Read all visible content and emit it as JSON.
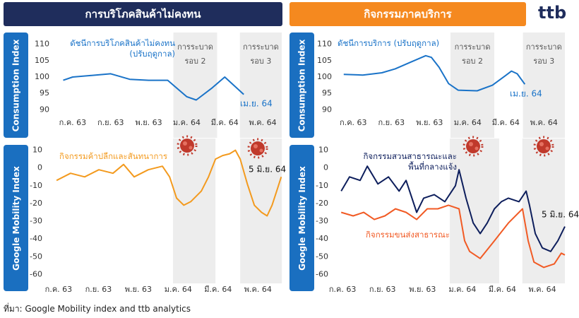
{
  "headers": {
    "left": "การบริโภคสินค้าไม่คงทน",
    "right": "กิจกรรมภาคบริการ"
  },
  "logo": "ttb",
  "side_labels": {
    "consumption": "Consumption Index",
    "mobility": "Google Mobility Index"
  },
  "source": "ที่มา: Google Mobility index and ttb analytics",
  "chart_data": [
    {
      "type": "line",
      "xlim": [
        -1,
        11
      ],
      "xticks": [
        {
          "value": 0,
          "label": "ก.ค. 63"
        },
        {
          "value": 2,
          "label": "ก.ย. 63"
        },
        {
          "value": 4,
          "label": "พ.ย. 63"
        },
        {
          "value": 6,
          "label": "ม.ค. 64"
        },
        {
          "value": 8,
          "label": "มี.ค. 64"
        },
        {
          "value": 10,
          "label": "พ.ค. 64"
        }
      ],
      "ylim": [
        87.5,
        112.5
      ],
      "yticks": [
        90,
        95,
        100,
        105,
        110
      ],
      "shaded": [
        {
          "from": 5.3,
          "to": 7.6,
          "label": "การระบาด รอบ 2"
        },
        {
          "from": 8.8,
          "to": 11,
          "label": "การระบาด รอบ 3"
        }
      ],
      "series": [
        {
          "name": "ดัชนีการบริโภคสินค้าไม่คงทน (ปรับฤดูกาล)",
          "color": "#1a73c8",
          "x": [
            -0.5,
            0,
            1,
            2,
            3,
            4,
            5,
            6,
            6.5,
            7.3,
            8,
            9
          ],
          "values": [
            99,
            100,
            100.5,
            101,
            99.3,
            99,
            99,
            94,
            93,
            96.5,
            100,
            94.7
          ]
        }
      ],
      "annotations": [
        {
          "text": "เม.ย. 64",
          "color": "#1a73c8"
        }
      ]
    },
    {
      "type": "line",
      "xlim": [
        -0.9,
        11.1
      ],
      "xticks": [
        {
          "value": 0,
          "label": "ก.ค. 63"
        },
        {
          "value": 2,
          "label": "ก.ย. 63"
        },
        {
          "value": 4,
          "label": "พ.ย. 63"
        },
        {
          "value": 6,
          "label": "ม.ค. 64"
        },
        {
          "value": 8,
          "label": "มี.ค. 64"
        },
        {
          "value": 10,
          "label": "พ.ค. 64"
        }
      ],
      "ylim": [
        87.5,
        112.5
      ],
      "yticks": [
        90,
        95,
        100,
        105,
        110
      ],
      "shaded": [
        {
          "from": 5.1,
          "to": 7.4,
          "label": "การระบาด รอบ 2"
        },
        {
          "from": 8.9,
          "to": 11.1,
          "label": "การระบาด รอบ 3"
        }
      ],
      "series": [
        {
          "name": "ดัชนีการบริการ (ปรับฤดูกาล)",
          "color": "#1a73c8",
          "x": [
            -0.5,
            0.5,
            1.5,
            2.2,
            3,
            3.8,
            4.1,
            4.5,
            5,
            5.5,
            6.5,
            7.3,
            8,
            8.3,
            8.6,
            9
          ],
          "values": [
            100.8,
            100.6,
            101.3,
            102.5,
            104.5,
            106.5,
            106,
            103,
            98,
            96,
            95.8,
            97.5,
            100.5,
            101.8,
            101,
            97.8
          ]
        }
      ],
      "annotations": [
        {
          "text": "เม.ย. 64",
          "color": "#1a73c8"
        }
      ]
    },
    {
      "type": "line",
      "xlim": [
        -0.6,
        11.3
      ],
      "xticks": [
        {
          "value": 0,
          "label": "ก.ค. 63"
        },
        {
          "value": 2,
          "label": "ก.ย. 63"
        },
        {
          "value": 4,
          "label": "พ.ย. 63"
        },
        {
          "value": 6,
          "label": "ม.ค. 64"
        },
        {
          "value": 8,
          "label": "มี.ค. 64"
        },
        {
          "value": 10,
          "label": "พ.ค. 64"
        }
      ],
      "ylim": [
        -65,
        15
      ],
      "yticks": [
        10,
        0,
        -10,
        -20,
        -30,
        -40,
        -50,
        -60
      ],
      "shaded": [
        {
          "from": 5.74,
          "to": 7.87
        },
        {
          "from": 9.11,
          "to": 11.2
        }
      ],
      "series": [
        {
          "name": "กิจกรรมค้าปลีกและสันทนาการ",
          "color": "#f39a1e",
          "x": [
            -0.1,
            0.6,
            1.31,
            2.02,
            2.73,
            3.26,
            3.79,
            4.5,
            5.21,
            5.57,
            5.92,
            6.28,
            6.63,
            7.16,
            7.52,
            7.87,
            8.23,
            8.58,
            8.87,
            9.11,
            9.47,
            9.82,
            10.18,
            10.46,
            10.71,
            11,
            11.17
          ],
          "values": [
            -7,
            -3,
            -5,
            -1,
            -3,
            2,
            -5,
            -1,
            1,
            -5,
            -17,
            -21,
            -19,
            -13,
            -5,
            5,
            7,
            8,
            10,
            5,
            -9,
            -21,
            -25,
            -27,
            -21,
            -11,
            -5
          ]
        }
      ],
      "annotations": [
        {
          "text": "5 มิ.ย. 64",
          "color": "#111111"
        }
      ]
    },
    {
      "type": "line",
      "xlim": [
        -0.5,
        11.2
      ],
      "xticks": [
        {
          "value": 0,
          "label": "ก.ค. 63"
        },
        {
          "value": 2,
          "label": "ก.ย. 63"
        },
        {
          "value": 4,
          "label": "พ.ย. 63"
        },
        {
          "value": 6,
          "label": "ม.ค. 64"
        },
        {
          "value": 8,
          "label": "มี.ค. 64"
        },
        {
          "value": 10,
          "label": "พ.ค. 64"
        }
      ],
      "ylim": [
        -65,
        15
      ],
      "yticks": [
        10,
        0,
        -10,
        -20,
        -30,
        -40,
        -50,
        -60
      ],
      "shaded": [
        {
          "from": 5.37,
          "to": 7.84
        },
        {
          "from": 9.0,
          "to": 11.13
        }
      ],
      "series": [
        {
          "name": "กิจกรรมสวนสาธารณะและพื้นที่กลางแจ้ง",
          "color": "#0d1e5c",
          "x": [
            -0.07,
            0.35,
            0.88,
            1.24,
            1.77,
            2.3,
            2.83,
            3.18,
            3.71,
            4.06,
            4.59,
            5.12,
            5.65,
            5.83,
            6.18,
            6.54,
            6.89,
            7.24,
            7.6,
            7.95,
            8.3,
            8.83,
            9.19,
            9.36,
            9.65,
            10,
            10.42,
            10.78,
            11.13
          ],
          "values": [
            -13,
            -5,
            -7,
            1,
            -9,
            -5,
            -13,
            -7,
            -25,
            -17,
            -15,
            -19,
            -10,
            -1,
            -17,
            -31,
            -37,
            -31,
            -23,
            -19,
            -17,
            -19,
            -13,
            -21,
            -37,
            -45,
            -47,
            -41,
            -33
          ]
        },
        {
          "name": "กิจกรรมขนส่งสาธารณะ",
          "color": "#f15a24",
          "x": [
            -0.07,
            0.53,
            1.06,
            1.59,
            2.12,
            2.65,
            3.18,
            3.71,
            4.24,
            4.77,
            5.3,
            5.83,
            6.11,
            6.36,
            6.89,
            7.6,
            8.3,
            9.01,
            9.29,
            9.58,
            10.07,
            10.6,
            10.95,
            11.13
          ],
          "values": [
            -25,
            -27,
            -25,
            -29,
            -27,
            -23,
            -25,
            -29,
            -23,
            -23,
            -21,
            -23,
            -41,
            -47,
            -51,
            -41,
            -31,
            -23,
            -41,
            -53,
            -56,
            -54,
            -48,
            -49
          ]
        }
      ],
      "annotations": [
        {
          "text": "5 มิ.ย. 64",
          "color": "#111111"
        }
      ]
    }
  ]
}
